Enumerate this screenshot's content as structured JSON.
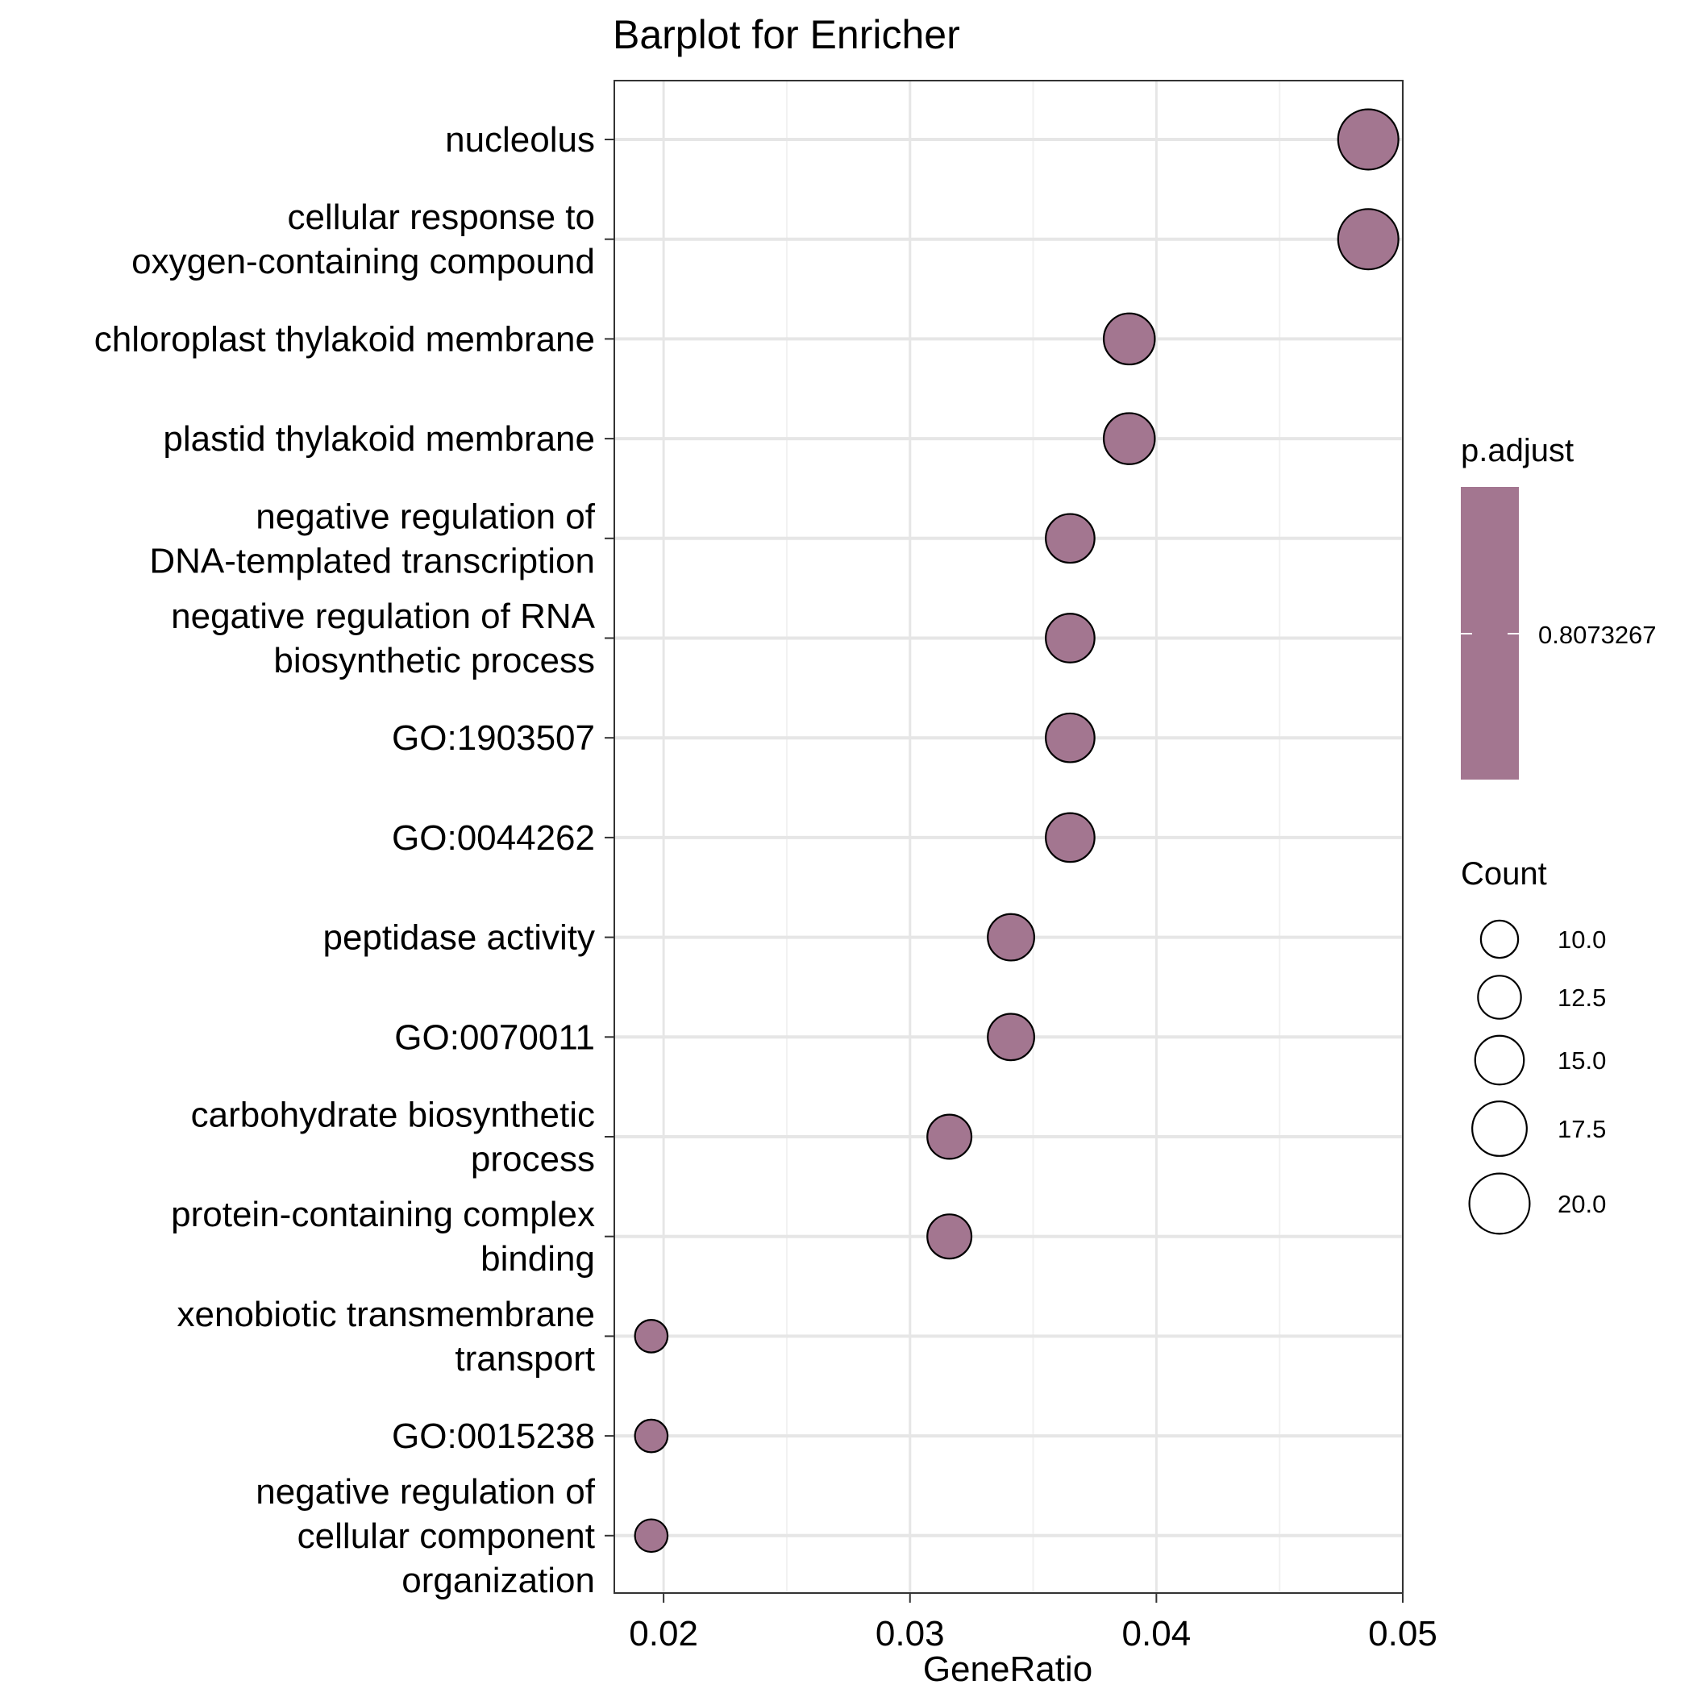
{
  "chart_data": {
    "type": "scatter",
    "title": "Barplot for Enricher",
    "xlabel": "GeneRatio",
    "ylabel": "",
    "xlim": [
      0.018,
      0.05
    ],
    "xticks": [
      0.02,
      0.03,
      0.04,
      0.05
    ],
    "xtick_labels": [
      "0.02",
      "0.03",
      "0.04",
      "0.05"
    ],
    "grid": true,
    "point_color": "#a37690",
    "categories": [
      {
        "label_lines": [
          "nucleolus"
        ],
        "gene_ratio": 0.0486,
        "count": 20
      },
      {
        "label_lines": [
          "cellular response to",
          "oxygen-containing compound"
        ],
        "gene_ratio": 0.0486,
        "count": 20
      },
      {
        "label_lines": [
          "chloroplast thylakoid membrane"
        ],
        "gene_ratio": 0.0389,
        "count": 16
      },
      {
        "label_lines": [
          "plastid thylakoid membrane"
        ],
        "gene_ratio": 0.0389,
        "count": 16
      },
      {
        "label_lines": [
          "negative regulation of",
          "DNA-templated transcription"
        ],
        "gene_ratio": 0.0365,
        "count": 15
      },
      {
        "label_lines": [
          "negative regulation of RNA",
          "biosynthetic process"
        ],
        "gene_ratio": 0.0365,
        "count": 15
      },
      {
        "label_lines": [
          "GO:1903507"
        ],
        "gene_ratio": 0.0365,
        "count": 15
      },
      {
        "label_lines": [
          "GO:0044262"
        ],
        "gene_ratio": 0.0365,
        "count": 15
      },
      {
        "label_lines": [
          "peptidase activity"
        ],
        "gene_ratio": 0.0341,
        "count": 14
      },
      {
        "label_lines": [
          "GO:0070011"
        ],
        "gene_ratio": 0.0341,
        "count": 14
      },
      {
        "label_lines": [
          "carbohydrate biosynthetic",
          "process"
        ],
        "gene_ratio": 0.0316,
        "count": 13
      },
      {
        "label_lines": [
          "protein-containing complex",
          "binding"
        ],
        "gene_ratio": 0.0316,
        "count": 13
      },
      {
        "label_lines": [
          "xenobiotic transmembrane",
          "transport"
        ],
        "gene_ratio": 0.0195,
        "count": 8
      },
      {
        "label_lines": [
          "GO:0015238"
        ],
        "gene_ratio": 0.0195,
        "count": 8
      },
      {
        "label_lines": [
          "negative regulation of",
          "cellular component",
          "organization"
        ],
        "gene_ratio": 0.0195,
        "count": 8
      }
    ],
    "color_legend": {
      "title": "p.adjust",
      "value_label": "0.8073267",
      "color": "#a37690"
    },
    "size_legend": {
      "title": "Count",
      "entries": [
        {
          "value": 10.0,
          "label": "10.0"
        },
        {
          "value": 12.5,
          "label": "12.5"
        },
        {
          "value": 15.0,
          "label": "15.0"
        },
        {
          "value": 17.5,
          "label": "17.5"
        },
        {
          "value": 20.0,
          "label": "20.0"
        }
      ]
    }
  }
}
